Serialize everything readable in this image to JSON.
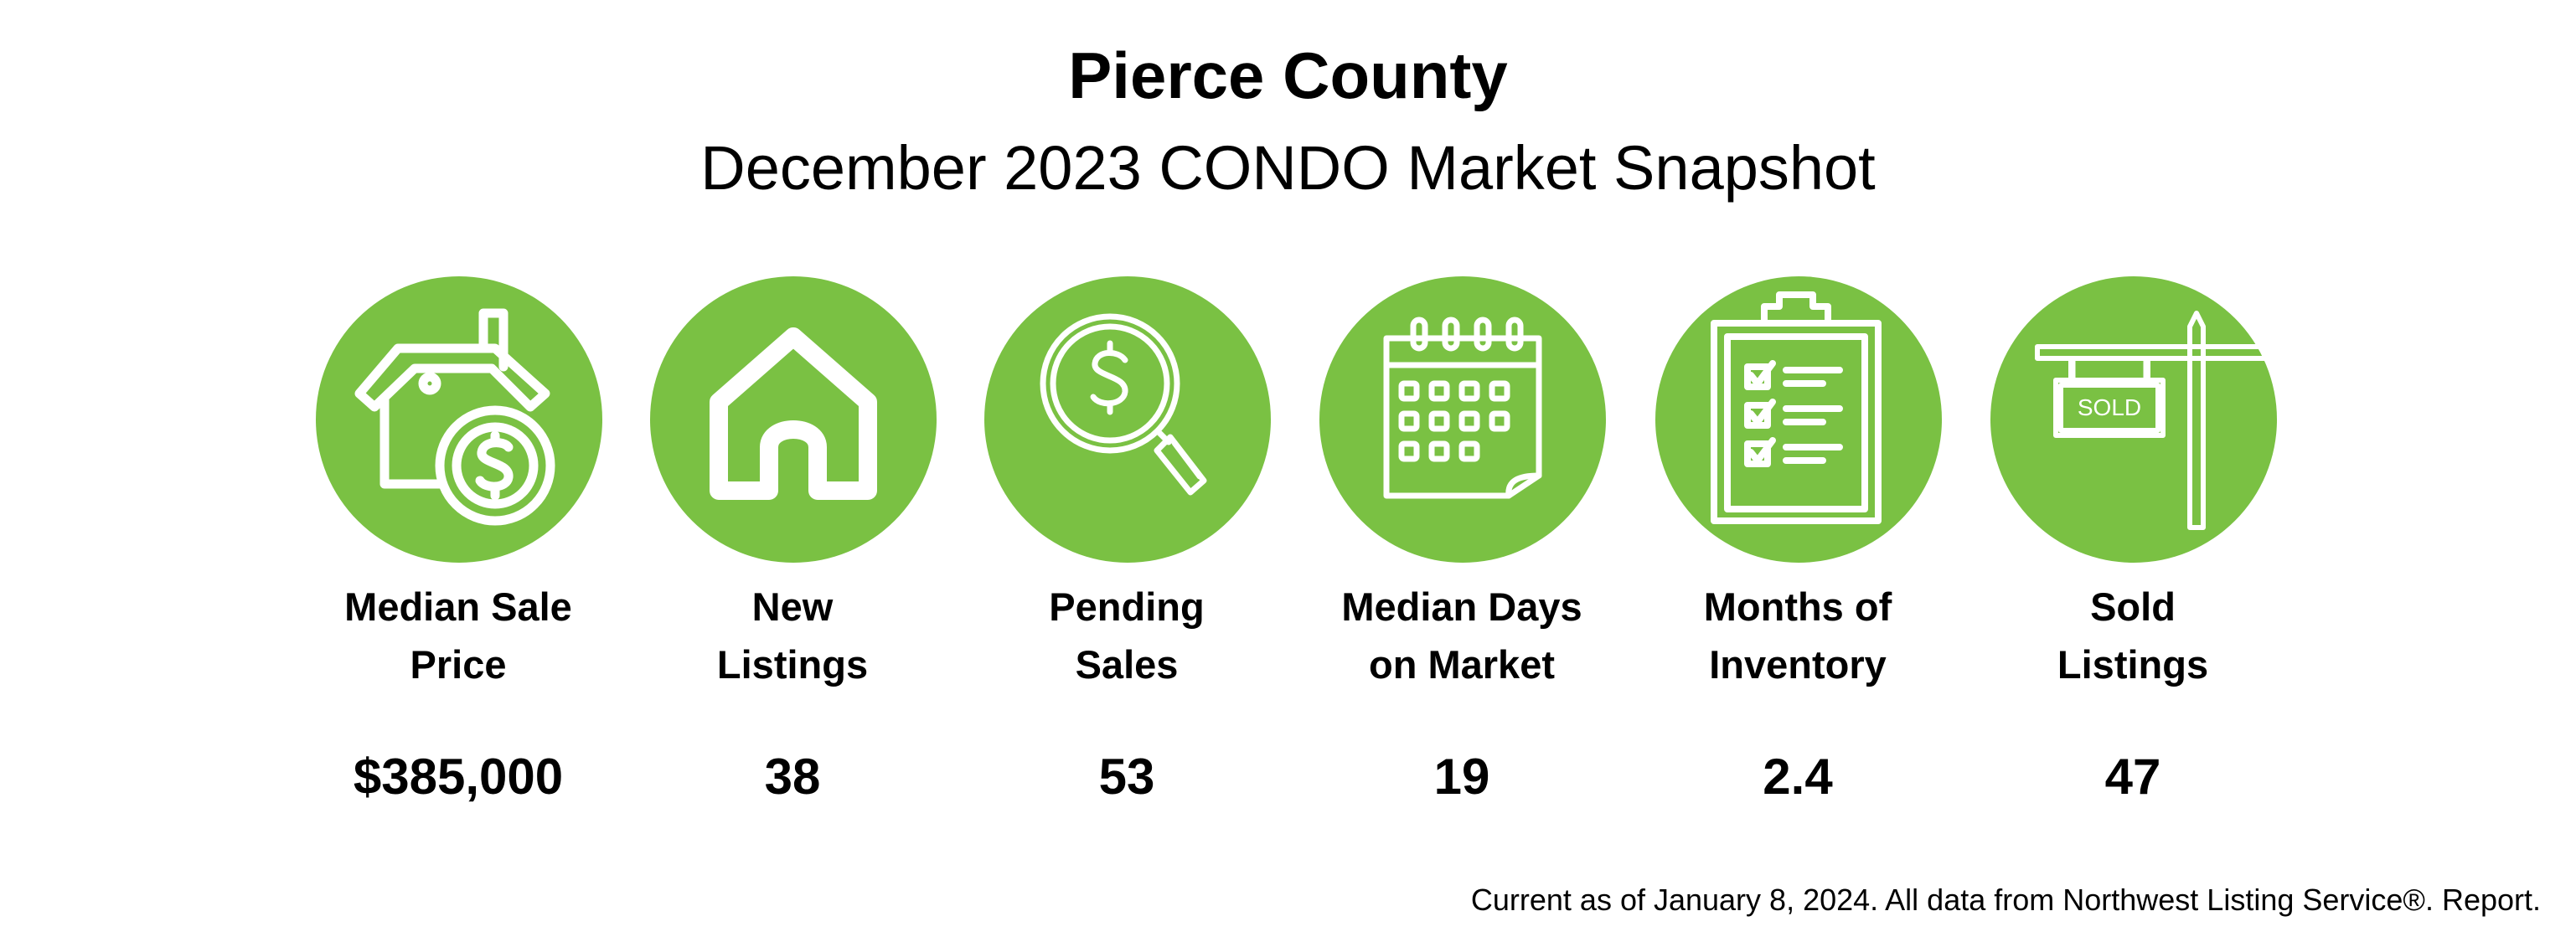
{
  "header": {
    "title": "Pierce County",
    "subtitle": "December 2023 CONDO Market Snapshot"
  },
  "accent_color": "#7ac143",
  "stats": [
    {
      "icon": "house-dollar-icon",
      "label_line1": "Median Sale",
      "label_line2": "Price",
      "value": "$385,000"
    },
    {
      "icon": "house-outline-icon",
      "label_line1": "New",
      "label_line2": "Listings",
      "value": "38"
    },
    {
      "icon": "magnifier-dollar-icon",
      "label_line1": "Pending",
      "label_line2": "Sales",
      "value": "53"
    },
    {
      "icon": "calendar-icon",
      "label_line1": "Median Days",
      "label_line2": "on Market",
      "value": "19"
    },
    {
      "icon": "clipboard-checklist-icon",
      "label_line1": "Months of",
      "label_line2": "Inventory",
      "value": "2.4"
    },
    {
      "icon": "sold-sign-icon",
      "label_line1": "Sold",
      "label_line2": "Listings",
      "value": "47",
      "sign_text": "SOLD"
    }
  ],
  "footer": {
    "note": "Current as of January 8, 2024. All data from Northwest Listing Service®. Report."
  }
}
